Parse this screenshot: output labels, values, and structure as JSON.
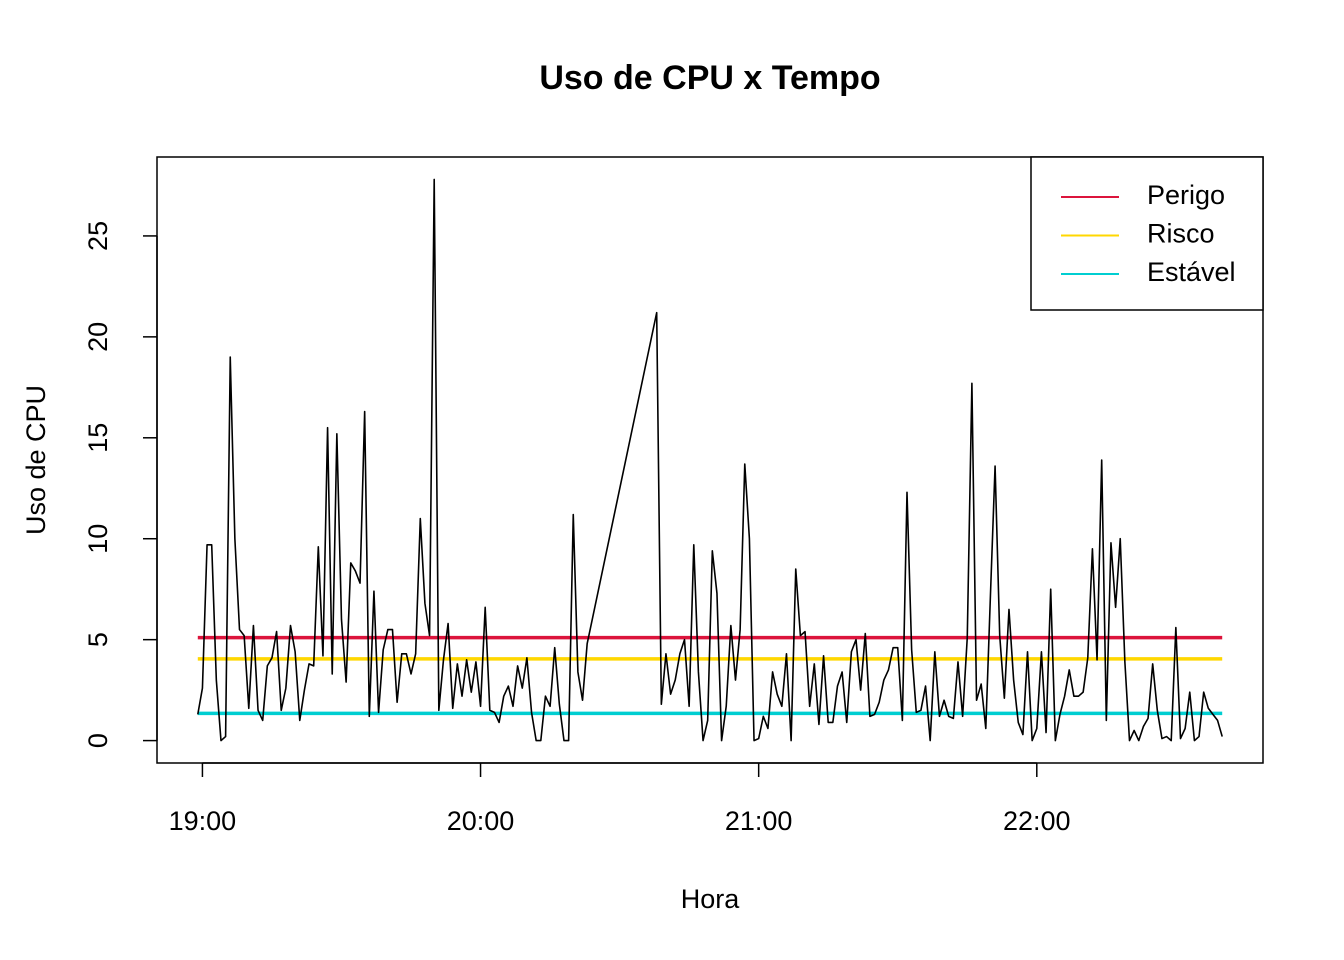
{
  "chart_data": {
    "type": "line",
    "title": "Uso de CPU x Tempo",
    "x_label": "Hora",
    "y_label": "Uso de CPU",
    "x": [
      1139,
      1140,
      1141,
      1142,
      1143,
      1144,
      1145,
      1146,
      1147,
      1148,
      1149,
      1150,
      1151,
      1152,
      1153,
      1154,
      1155,
      1156,
      1157,
      1158,
      1159,
      1160,
      1161,
      1162,
      1163,
      1164,
      1165,
      1166,
      1167,
      1168,
      1169,
      1170,
      1171,
      1172,
      1173,
      1174,
      1175,
      1176,
      1177,
      1178,
      1179,
      1180,
      1181,
      1182,
      1183,
      1184,
      1185,
      1186,
      1187,
      1188,
      1189,
      1190,
      1191,
      1192,
      1193,
      1194,
      1195,
      1196,
      1197,
      1198,
      1199,
      1200,
      1201,
      1202,
      1203,
      1204,
      1205,
      1206,
      1207,
      1208,
      1209,
      1210,
      1211,
      1212,
      1213,
      1214,
      1215,
      1216,
      1217,
      1218,
      1219,
      1220,
      1221,
      1222,
      1223,
      1238,
      1239,
      1240,
      1241,
      1242,
      1243,
      1244,
      1245,
      1246,
      1247,
      1248,
      1249,
      1250,
      1251,
      1252,
      1253,
      1254,
      1255,
      1256,
      1257,
      1258,
      1259,
      1260,
      1261,
      1262,
      1263,
      1264,
      1265,
      1266,
      1267,
      1268,
      1269,
      1270,
      1271,
      1272,
      1273,
      1274,
      1275,
      1276,
      1277,
      1278,
      1279,
      1280,
      1281,
      1282,
      1283,
      1284,
      1285,
      1286,
      1287,
      1288,
      1289,
      1290,
      1291,
      1292,
      1293,
      1294,
      1295,
      1296,
      1297,
      1298,
      1299,
      1300,
      1301,
      1302,
      1303,
      1304,
      1305,
      1306,
      1307,
      1308,
      1309,
      1310,
      1311,
      1312,
      1313,
      1314,
      1315,
      1316,
      1317,
      1318,
      1319,
      1320,
      1321,
      1322,
      1323,
      1324,
      1325,
      1326,
      1327,
      1328,
      1329,
      1330,
      1331,
      1332,
      1333,
      1334,
      1335,
      1336,
      1337,
      1338,
      1339,
      1340,
      1341,
      1342,
      1343,
      1344,
      1345,
      1346,
      1347,
      1348,
      1349,
      1350,
      1351,
      1352,
      1353,
      1354,
      1355,
      1356,
      1357,
      1358,
      1359,
      1360
    ],
    "series": [
      {
        "color": "#000000",
        "values": [
          1.3,
          2.6,
          9.7,
          9.7,
          3,
          0,
          0.2,
          19,
          10,
          5.5,
          5.2,
          1.6,
          5.7,
          1.5,
          1,
          3.7,
          4.1,
          5.4,
          1.5,
          2.6,
          5.7,
          4.4,
          1,
          2.5,
          3.8,
          3.7,
          9.6,
          4.2,
          15.5,
          3.3,
          15.2,
          6,
          2.9,
          8.8,
          8.4,
          7.8,
          16.3,
          1.2,
          7.4,
          1.4,
          4.5,
          5.5,
          5.5,
          1.9,
          4.3,
          4.3,
          3.3,
          4.3,
          11,
          6.8,
          5.2,
          27.8,
          1.5,
          4,
          5.8,
          1.6,
          3.8,
          2.2,
          4,
          2.4,
          3.9,
          1.7,
          6.6,
          1.5,
          1.4,
          0.9,
          2.2,
          2.7,
          1.7,
          3.7,
          2.6,
          4.1,
          1.4,
          0,
          0,
          2.2,
          1.7,
          4.6,
          1.8,
          0,
          0,
          11.2,
          3.4,
          2,
          4.8,
          21.2,
          1.8,
          4.3,
          2.3,
          3,
          4.3,
          5,
          1.7,
          9.7,
          3.4,
          0,
          1,
          9.4,
          7.3,
          0,
          1.7,
          5.7,
          3,
          5.5,
          13.7,
          10,
          0,
          0.1,
          1.2,
          0.6,
          3.4,
          2.3,
          1.7,
          4.3,
          0,
          8.5,
          5.2,
          5.4,
          1.7,
          3.8,
          0.8,
          4.2,
          0.9,
          0.9,
          2.7,
          3.4,
          0.9,
          4.4,
          5,
          2.5,
          5.3,
          1.2,
          1.3,
          1.9,
          3,
          3.5,
          4.6,
          4.6,
          1,
          12.3,
          4.5,
          1.4,
          1.5,
          2.7,
          0,
          4.4,
          1.2,
          2,
          1.2,
          1.1,
          3.9,
          1.2,
          5.1,
          17.7,
          2,
          2.8,
          0.6,
          7.2,
          13.6,
          5.2,
          2.1,
          6.5,
          3,
          0.9,
          0.3,
          4.4,
          0,
          0.6,
          4.4,
          0.4,
          7.5,
          0,
          1.3,
          2.2,
          3.5,
          2.2,
          2.2,
          2.4,
          4.1,
          9.5,
          4,
          13.9,
          1,
          9.8,
          6.6,
          10,
          3.9,
          0,
          0.5,
          0,
          0.7,
          1.1,
          3.8,
          1.5,
          0.1,
          0.2,
          0,
          5.6,
          0.1,
          0.6,
          2.4,
          0,
          0.2,
          2.4,
          1.6,
          1.3,
          1,
          0.2
        ]
      }
    ],
    "reference_lines": [
      {
        "name": "Perigo",
        "color": "#dc143c",
        "value": 5.1
      },
      {
        "name": "Risco",
        "color": "#ffd700",
        "value": 4.05
      },
      {
        "name": "Estável",
        "color": "#00ced1",
        "value": 1.35
      }
    ],
    "xlim": [
      1130.2,
      1368.8
    ],
    "xticks": [
      {
        "value": 1140,
        "label": "19:00"
      },
      {
        "value": 1200,
        "label": "20:00"
      },
      {
        "value": 1260,
        "label": "21:00"
      },
      {
        "value": 1320,
        "label": "22:00"
      }
    ],
    "ylim": [
      -1.11,
      28.91
    ],
    "yticks": [
      0,
      5,
      10,
      15,
      20,
      25
    ],
    "legend_position": "topright"
  }
}
